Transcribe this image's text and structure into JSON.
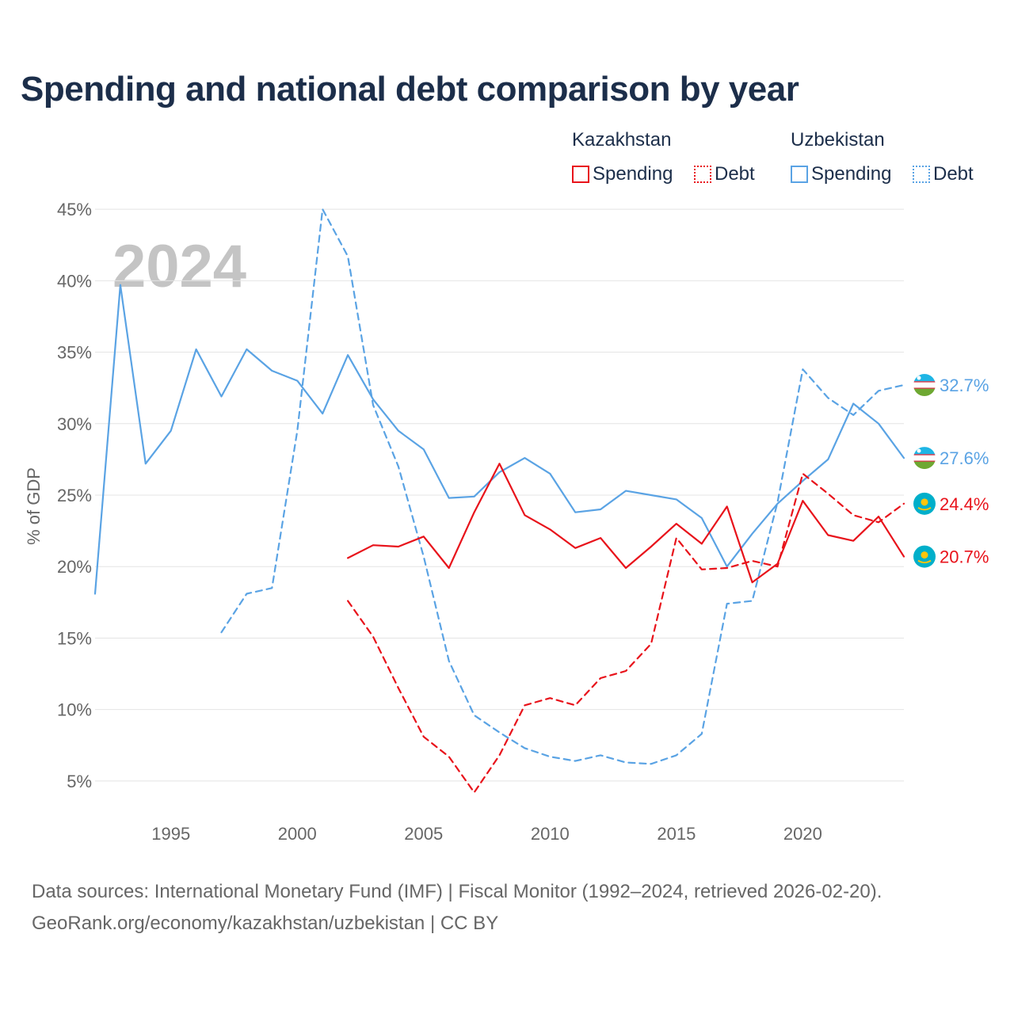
{
  "title": "Spending and national debt comparison by year",
  "legend": {
    "kazakhstan": {
      "country": "Kazakhstan",
      "spending": "Spending",
      "debt": "Debt"
    },
    "uzbekistan": {
      "country": "Uzbekistan",
      "spending": "Spending",
      "debt": "Debt"
    }
  },
  "colors": {
    "kazakhstan": "#e8131b",
    "uzbekistan": "#5aa3e4",
    "grid": "#e4e4e4",
    "axis_text": "#666666",
    "year_watermark": "#c4c4c4"
  },
  "footer": {
    "line1": "Data sources: International Monetary Fund (IMF) | Fiscal Monitor (1992–2024, retrieved 2026-02-20).",
    "line2": "GeoRank.org/economy/kazakhstan/uzbekistan | CC BY"
  },
  "chart_data": {
    "type": "line",
    "title": "Spending and national debt comparison by year",
    "current_year_label": "2024",
    "xlabel": "",
    "ylabel": "% of GDP",
    "xlim": [
      1992,
      2024
    ],
    "ylim": [
      3,
      47
    ],
    "x_ticks": [
      1995,
      2000,
      2005,
      2010,
      2015,
      2020
    ],
    "y_ticks": [
      5,
      10,
      15,
      20,
      25,
      30,
      35,
      40,
      45
    ],
    "y_tick_labels": [
      "5%",
      "10%",
      "15%",
      "20%",
      "25%",
      "30%",
      "35%",
      "40%",
      "45%"
    ],
    "series": [
      {
        "name": "Kazakhstan Spending",
        "country": "kazakhstan",
        "style": "solid",
        "end_label": "20.7%",
        "x": [
          2002,
          2003,
          2004,
          2005,
          2006,
          2007,
          2008,
          2009,
          2010,
          2011,
          2012,
          2013,
          2014,
          2015,
          2016,
          2017,
          2018,
          2019,
          2020,
          2021,
          2022,
          2023,
          2024
        ],
        "values": [
          20.6,
          21.5,
          21.4,
          22.1,
          19.9,
          23.8,
          27.2,
          23.6,
          22.6,
          21.3,
          22.0,
          19.9,
          21.4,
          23.0,
          21.6,
          24.2,
          18.9,
          20.2,
          24.6,
          22.2,
          21.8,
          23.5,
          20.7
        ]
      },
      {
        "name": "Kazakhstan Debt",
        "country": "kazakhstan",
        "style": "dashed",
        "end_label": "24.4%",
        "x": [
          2002,
          2003,
          2004,
          2005,
          2006,
          2007,
          2008,
          2009,
          2010,
          2011,
          2012,
          2013,
          2014,
          2015,
          2016,
          2017,
          2018,
          2019,
          2020,
          2021,
          2022,
          2023,
          2024
        ],
        "values": [
          17.6,
          15.1,
          11.5,
          8.1,
          6.7,
          4.2,
          6.8,
          10.3,
          10.8,
          10.3,
          12.2,
          12.7,
          14.6,
          22.0,
          19.8,
          19.9,
          20.4,
          20.0,
          26.5,
          25.1,
          23.6,
          23.1,
          24.4
        ]
      },
      {
        "name": "Uzbekistan Spending",
        "country": "uzbekistan",
        "style": "solid",
        "end_label": "27.6%",
        "x": [
          1992,
          1993,
          1994,
          1995,
          1996,
          1997,
          1998,
          1999,
          2000,
          2001,
          2002,
          2003,
          2004,
          2005,
          2006,
          2007,
          2008,
          2009,
          2010,
          2011,
          2012,
          2013,
          2014,
          2015,
          2016,
          2017,
          2018,
          2019,
          2020,
          2021,
          2022,
          2023,
          2024
        ],
        "values": [
          18.1,
          39.7,
          27.2,
          29.5,
          35.2,
          31.9,
          35.2,
          33.7,
          33.0,
          30.7,
          34.8,
          31.7,
          29.5,
          28.2,
          24.8,
          24.9,
          26.6,
          27.6,
          26.5,
          23.8,
          24.0,
          25.3,
          25.0,
          24.7,
          23.4,
          20.0,
          22.3,
          24.4,
          26.0,
          27.5,
          31.4,
          30.0,
          27.6
        ]
      },
      {
        "name": "Uzbekistan Debt",
        "country": "uzbekistan",
        "style": "dashed",
        "end_label": "32.7%",
        "x": [
          1997,
          1998,
          1999,
          2000,
          2001,
          2002,
          2003,
          2004,
          2005,
          2006,
          2007,
          2008,
          2009,
          2010,
          2011,
          2012,
          2013,
          2014,
          2015,
          2016,
          2017,
          2018,
          2019,
          2020,
          2021,
          2022,
          2023,
          2024
        ],
        "values": [
          15.4,
          18.1,
          18.5,
          29.5,
          45.0,
          41.7,
          31.3,
          27.0,
          20.7,
          13.4,
          9.6,
          8.4,
          7.3,
          6.7,
          6.4,
          6.8,
          6.3,
          6.2,
          6.8,
          8.3,
          17.4,
          17.6,
          24.5,
          33.8,
          31.8,
          30.6,
          32.3,
          32.7
        ]
      }
    ]
  }
}
